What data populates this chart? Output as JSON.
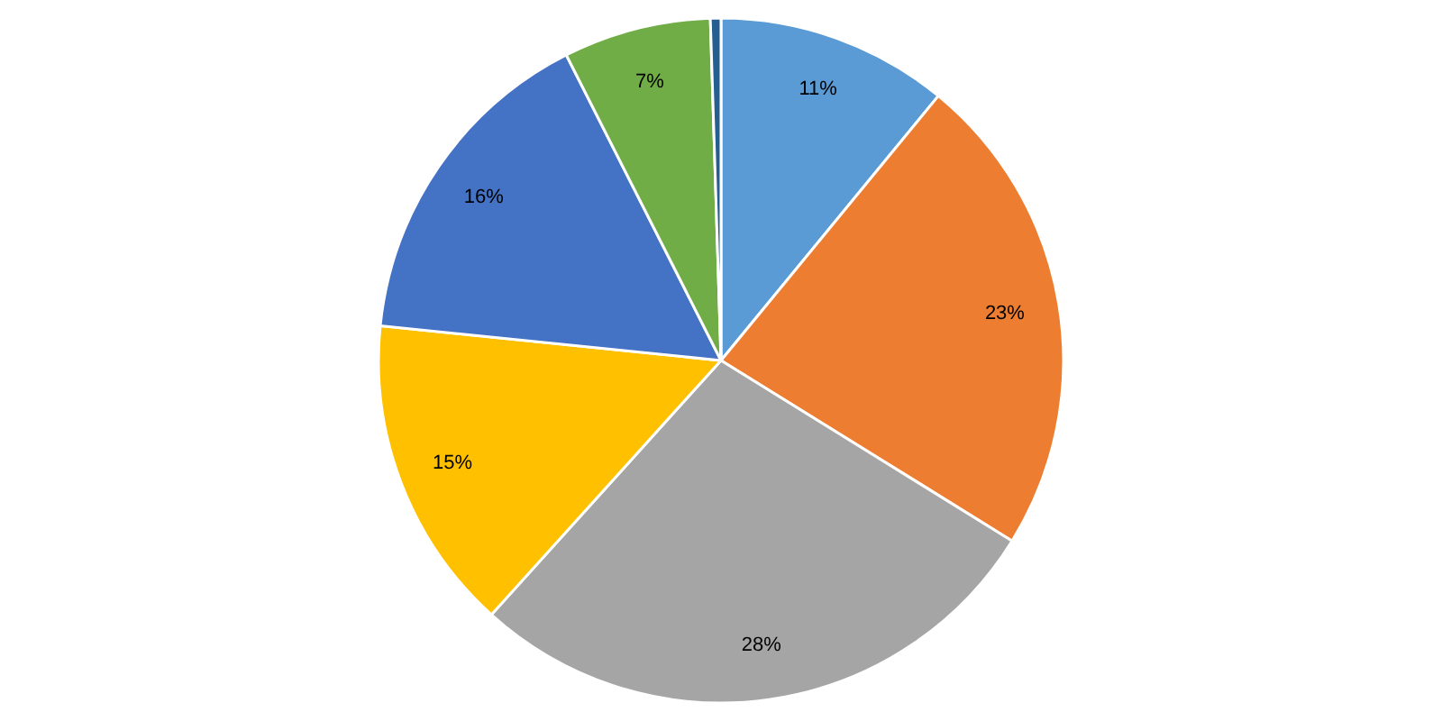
{
  "chart_data": {
    "type": "pie",
    "categories": [
      null,
      null,
      null,
      null,
      null,
      null,
      null
    ],
    "values": [
      11,
      23,
      28,
      15,
      16,
      7,
      0.5
    ],
    "value_labels": [
      "11%",
      "23%",
      "28%",
      "15%",
      "16%",
      "7%",
      null
    ],
    "colors": [
      "#5b9bd5",
      "#ed7d31",
      "#a5a5a5",
      "#ffc000",
      "#4472c4",
      "#70ad47",
      "#255e91"
    ]
  }
}
